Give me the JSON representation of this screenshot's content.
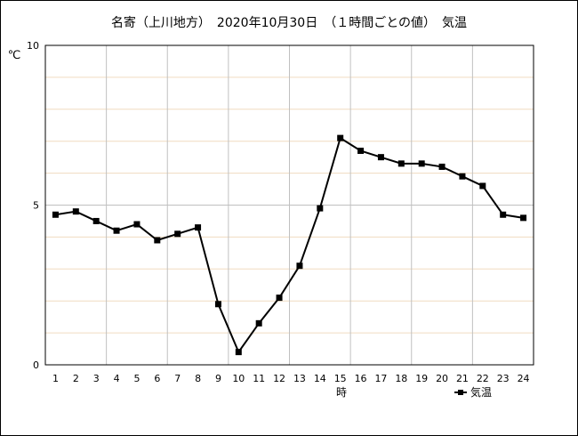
{
  "chart_data": {
    "type": "line",
    "title": "名寄（上川地方）　2020年10月30日　（１時間ごとの値）　気温",
    "ylabel": "℃",
    "xlabel": "時",
    "ylim": [
      0,
      10
    ],
    "yticks": [
      "0",
      "5",
      "10"
    ],
    "grid": true,
    "legend": "bottom-right",
    "categories": [
      "1",
      "2",
      "3",
      "4",
      "5",
      "6",
      "7",
      "8",
      "9",
      "10",
      "11",
      "12",
      "13",
      "14",
      "15",
      "16",
      "17",
      "18",
      "19",
      "20",
      "21",
      "22",
      "23",
      "24"
    ],
    "series": [
      {
        "name": "気温",
        "color": "#000000",
        "marker": "square",
        "values": [
          4.7,
          4.8,
          4.5,
          4.2,
          4.4,
          3.9,
          4.1,
          4.3,
          1.9,
          0.4,
          1.3,
          2.1,
          3.1,
          4.9,
          7.1,
          6.7,
          6.5,
          6.3,
          6.3,
          6.2,
          5.9,
          5.6,
          4.7,
          4.6
        ]
      }
    ],
    "colors": {
      "major_grid": "#c0c0c0",
      "minor_grid": "#f0dcc0",
      "axis": "#000000"
    }
  }
}
